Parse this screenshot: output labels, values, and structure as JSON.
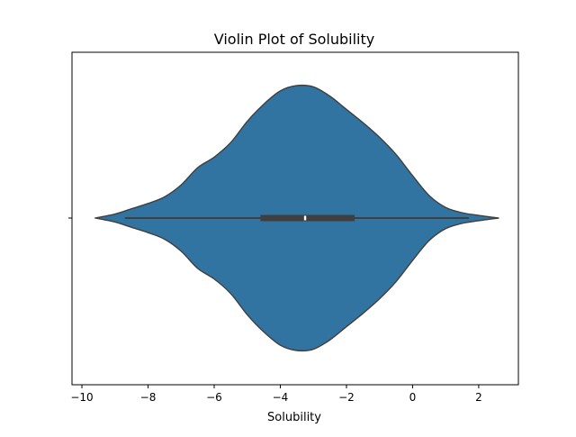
{
  "chart_data": {
    "type": "violin",
    "title": "Violin Plot of Solubility",
    "xlabel": "Solubility",
    "ylabel": "",
    "xlim": [
      -10.3,
      3.2
    ],
    "x_ticks": [
      -10,
      -8,
      -6,
      -4,
      -2,
      0,
      2
    ],
    "x_tick_labels": [
      "−10",
      "−8",
      "−6",
      "−4",
      "−2",
      "0",
      "2"
    ],
    "orientation": "horizontal",
    "color": "#3274a1",
    "edge_color": "#3f3f3f",
    "density_extent": [
      -9.6,
      2.6
    ],
    "density_profile": [
      {
        "x": -9.6,
        "w": 0.0
      },
      {
        "x": -9.0,
        "w": 0.03
      },
      {
        "x": -8.5,
        "w": 0.07
      },
      {
        "x": -8.0,
        "w": 0.11
      },
      {
        "x": -7.5,
        "w": 0.16
      },
      {
        "x": -7.0,
        "w": 0.25
      },
      {
        "x": -6.5,
        "w": 0.38
      },
      {
        "x": -6.0,
        "w": 0.46
      },
      {
        "x": -5.5,
        "w": 0.57
      },
      {
        "x": -5.0,
        "w": 0.73
      },
      {
        "x": -4.5,
        "w": 0.86
      },
      {
        "x": -4.0,
        "w": 0.96
      },
      {
        "x": -3.5,
        "w": 1.0
      },
      {
        "x": -3.0,
        "w": 0.99
      },
      {
        "x": -2.5,
        "w": 0.92
      },
      {
        "x": -2.0,
        "w": 0.82
      },
      {
        "x": -1.5,
        "w": 0.72
      },
      {
        "x": -1.0,
        "w": 0.61
      },
      {
        "x": -0.5,
        "w": 0.48
      },
      {
        "x": 0.0,
        "w": 0.32
      },
      {
        "x": 0.5,
        "w": 0.17
      },
      {
        "x": 1.0,
        "w": 0.08
      },
      {
        "x": 1.5,
        "w": 0.04
      },
      {
        "x": 2.0,
        "w": 0.02
      },
      {
        "x": 2.6,
        "w": 0.0
      }
    ],
    "whiskers": [
      -8.7,
      1.7
    ],
    "quartiles": [
      -4.6,
      -1.75
    ],
    "median": -3.25
  }
}
